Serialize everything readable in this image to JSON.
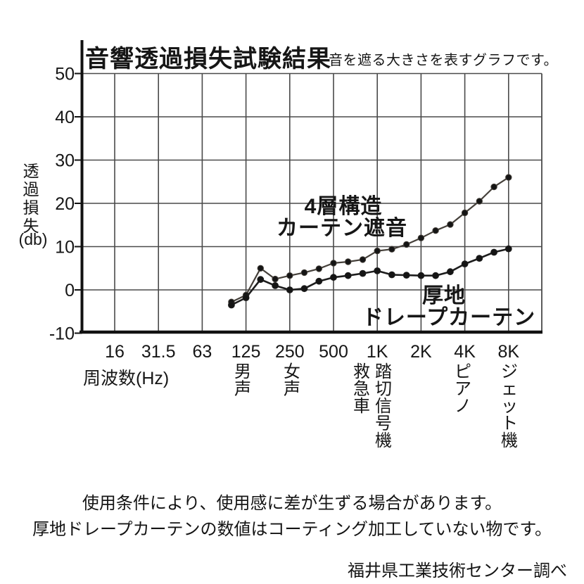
{
  "title": "音響透過損失試験結果",
  "subtitle": "音を遮る大きさを表すグラフです。",
  "y_axis": {
    "title_vertical": "透過損失",
    "unit": "(db)",
    "tick_labels": [
      "50",
      "40",
      "30",
      "20",
      "10",
      "0",
      "-10"
    ]
  },
  "x_axis": {
    "title": "周波数(Hz)",
    "tick_labels": [
      "16",
      "31.5",
      "63",
      "125",
      "250",
      "500",
      "1K",
      "2K",
      "4K",
      "8K"
    ]
  },
  "sound_source_labels": [
    "男声",
    "女声",
    "救急車",
    "踏切信号機",
    "ピアノ",
    "ジェット機"
  ],
  "annotations": {
    "upper": [
      "4層構造",
      "カーテン遮音"
    ],
    "lower": [
      "厚地",
      "ドレープカーテン"
    ]
  },
  "notes": [
    "使用条件により、使用感に差が生ずる場合があります。",
    "厚地ドレープカーテンの数値はコーティング加工していない物です。"
  ],
  "attribution": "福井県工業技術センター調べ",
  "colors": {
    "ink": "#161616",
    "grid": "#4a4a4a",
    "axis": "#111111",
    "line_upper": "#45403a",
    "line_lower": "#1d1d1d",
    "dot": "#151515"
  },
  "chart_data": {
    "type": "line",
    "title": "音響透過損失試験結果",
    "subtitle": "音を遮る大きさを表すグラフです。",
    "xlabel": "周波数(Hz)",
    "ylabel": "透過損失(db)",
    "x_scale": "log (1/3 octave points)",
    "x_octave_ticks": [
      "16",
      "31.5",
      "63",
      "125",
      "250",
      "500",
      "1K",
      "2K",
      "4K",
      "8K"
    ],
    "ylim": [
      -10,
      50
    ],
    "y_ticks": [
      50,
      40,
      30,
      20,
      10,
      0,
      -10
    ],
    "grid": true,
    "legend": "inline text annotations",
    "frequencies_hz": [
      100,
      125,
      160,
      200,
      250,
      315,
      400,
      500,
      630,
      800,
      1000,
      1250,
      1600,
      2000,
      2500,
      3150,
      4000,
      5000,
      6300,
      8000
    ],
    "series": [
      {
        "name": "4層構造カーテン遮音",
        "values": [
          -2.8,
          -1.2,
          5.0,
          2.5,
          3.3,
          4.0,
          4.9,
          6.2,
          6.5,
          7.0,
          9.0,
          9.4,
          10.5,
          12.0,
          13.7,
          15.1,
          17.8,
          20.5,
          23.8,
          26.0
        ]
      },
      {
        "name": "厚地ドレープカーテン",
        "values": [
          -3.5,
          -1.8,
          2.4,
          1.0,
          0.0,
          0.3,
          2.0,
          2.9,
          3.3,
          3.8,
          4.4,
          3.5,
          3.4,
          3.3,
          3.3,
          4.2,
          6.0,
          7.3,
          8.7,
          9.5
        ]
      }
    ],
    "sound_source_annotations": [
      {
        "label": "男声",
        "near_hz": "125"
      },
      {
        "label": "女声",
        "near_hz": "250"
      },
      {
        "label": "救急車",
        "near_hz": "800"
      },
      {
        "label": "踏切信号機",
        "near_hz": "1K"
      },
      {
        "label": "ピアノ",
        "near_hz": "4K"
      },
      {
        "label": "ジェット機",
        "near_hz": "8K"
      }
    ]
  }
}
